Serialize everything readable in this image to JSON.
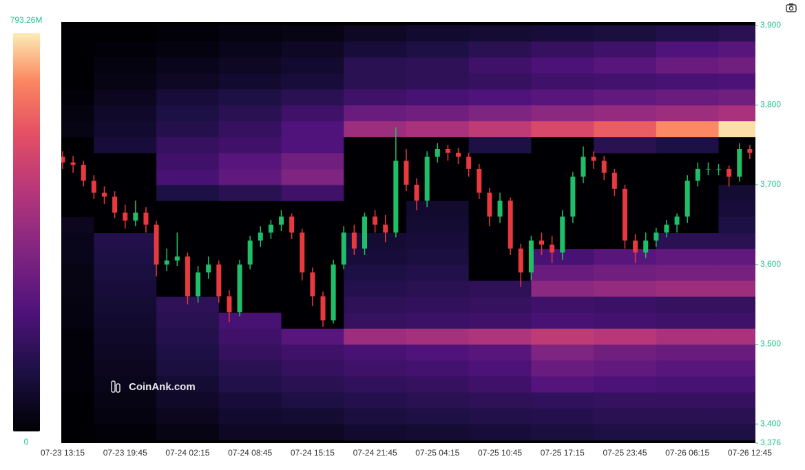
{
  "chart_data": {
    "type": "heatmap",
    "watermark": "CoinAnk.com",
    "categories": [
      "07-23 13:15",
      null,
      null,
      null,
      null,
      null,
      "07-23 19:45",
      null,
      null,
      null,
      null,
      null,
      "07-24 02:15",
      null,
      null,
      null,
      null,
      null,
      "07-24 08:45",
      null,
      null,
      null,
      null,
      null,
      "07-24 15:15",
      null,
      null,
      null,
      null,
      null,
      "07-24 21:45",
      null,
      null,
      null,
      null,
      null,
      "07-25 04:15",
      null,
      null,
      null,
      null,
      null,
      "07-25 10:45",
      null,
      null,
      null,
      null,
      null,
      "07-25 17:15",
      null,
      null,
      null,
      null,
      null,
      "07-25 23:45",
      null,
      null,
      null,
      null,
      null,
      "07-26 06:15",
      null,
      null,
      null,
      null,
      null,
      "07-26 12:45"
    ],
    "ylim": [
      3376,
      3904
    ],
    "yticks": [
      {
        "value": 3376,
        "label": "3,376"
      },
      {
        "value": 3400,
        "label": "3,400"
      },
      {
        "value": 3500,
        "label": "3,500"
      },
      {
        "value": 3600,
        "label": "3,600"
      },
      {
        "value": 3700,
        "label": "3,700"
      },
      {
        "value": 3800,
        "label": "3,800"
      },
      {
        "value": 3900,
        "label": "3,900"
      }
    ],
    "colorbar": {
      "zlim": [
        0,
        793.26
      ],
      "ticks": [
        0,
        {
          "value": 793.26,
          "label": "793.26M"
        }
      ]
    },
    "y_bins": [
      3380,
      3400,
      3420,
      3440,
      3460,
      3480,
      3500,
      3520,
      3540,
      3560,
      3580,
      3600,
      3620,
      3640,
      3660,
      3680,
      3700,
      3720,
      3740,
      3760,
      3780,
      3800,
      3820,
      3840,
      3860,
      3880,
      3900
    ],
    "z": [
      [
        0,
        10,
        30,
        60,
        60,
        80,
        90,
        100,
        110,
        120,
        120,
        120
      ],
      [
        0,
        20,
        50,
        80,
        90,
        110,
        120,
        130,
        140,
        150,
        150,
        150
      ],
      [
        0,
        30,
        70,
        100,
        120,
        140,
        150,
        160,
        170,
        180,
        180,
        180
      ],
      [
        10,
        40,
        90,
        130,
        150,
        170,
        180,
        200,
        250,
        230,
        220,
        220
      ],
      [
        10,
        50,
        110,
        150,
        180,
        200,
        210,
        230,
        300,
        280,
        260,
        260
      ],
      [
        10,
        60,
        120,
        180,
        200,
        220,
        240,
        260,
        350,
        320,
        300,
        300
      ],
      [
        10,
        70,
        140,
        200,
        260,
        420,
        440,
        460,
        500,
        480,
        450,
        450
      ],
      [
        20,
        80,
        150,
        220,
        0,
        180,
        190,
        200,
        220,
        210,
        200,
        200
      ],
      [
        20,
        90,
        160,
        0,
        0,
        160,
        170,
        180,
        200,
        190,
        180,
        180
      ],
      [
        30,
        100,
        0,
        0,
        0,
        140,
        150,
        160,
        380,
        400,
        420,
        420
      ],
      [
        30,
        110,
        0,
        0,
        0,
        120,
        130,
        0,
        300,
        320,
        330,
        330
      ],
      [
        40,
        120,
        0,
        0,
        0,
        100,
        110,
        0,
        220,
        260,
        280,
        280
      ],
      [
        40,
        130,
        0,
        0,
        0,
        90,
        100,
        0,
        0,
        0,
        150,
        150
      ],
      [
        50,
        0,
        0,
        0,
        0,
        0,
        90,
        0,
        0,
        0,
        0,
        120
      ],
      [
        0,
        0,
        0,
        0,
        0,
        0,
        80,
        0,
        0,
        0,
        0,
        100
      ],
      [
        0,
        0,
        120,
        150,
        200,
        0,
        0,
        0,
        0,
        0,
        0,
        90
      ],
      [
        0,
        0,
        220,
        280,
        350,
        0,
        0,
        0,
        0,
        0,
        0,
        0
      ],
      [
        0,
        0,
        200,
        260,
        320,
        0,
        0,
        0,
        0,
        0,
        0,
        0
      ],
      [
        0,
        100,
        180,
        200,
        240,
        0,
        0,
        120,
        0,
        150,
        120,
        0
      ],
      [
        30,
        80,
        140,
        180,
        240,
        420,
        450,
        500,
        560,
        620,
        700,
        780
      ],
      [
        20,
        70,
        120,
        150,
        200,
        300,
        320,
        350,
        380,
        400,
        420,
        450
      ],
      [
        10,
        50,
        100,
        120,
        150,
        200,
        220,
        240,
        260,
        280,
        300,
        320
      ],
      [
        0,
        30,
        60,
        80,
        100,
        150,
        160,
        180,
        200,
        210,
        220,
        230
      ],
      [
        0,
        20,
        40,
        60,
        80,
        150,
        160,
        200,
        230,
        260,
        300,
        320
      ],
      [
        0,
        10,
        20,
        40,
        60,
        100,
        120,
        150,
        180,
        200,
        240,
        260
      ],
      [
        0,
        0,
        10,
        20,
        30,
        60,
        80,
        90,
        100,
        110,
        130,
        150
      ]
    ],
    "candles": {
      "up_color": "#1fbf6a",
      "down_color": "#e8393f",
      "open": [
        3735,
        3728,
        3725,
        3705,
        3690,
        3685,
        3665,
        3655,
        3665,
        3650,
        3600,
        3605,
        3610,
        3560,
        3590,
        3600,
        3560,
        3540,
        3600,
        3630,
        3640,
        3650,
        3660,
        3640,
        3590,
        3560,
        3530,
        3600,
        3640,
        3620,
        3660,
        3650,
        3640,
        3730,
        3700,
        3680,
        3735,
        3745,
        3740,
        3735,
        3720,
        3690,
        3660,
        3680,
        3620,
        3590,
        3630,
        3625,
        3615,
        3660,
        3710,
        3735,
        3730,
        3715,
        3695,
        3630,
        3615,
        3630,
        3640,
        3650,
        3660,
        3705,
        3720,
        3720,
        3720,
        3710,
        3745
      ],
      "high": [
        3742,
        3736,
        3730,
        3712,
        3698,
        3692,
        3675,
        3680,
        3672,
        3655,
        3620,
        3640,
        3615,
        3598,
        3610,
        3605,
        3568,
        3606,
        3636,
        3648,
        3656,
        3668,
        3664,
        3645,
        3596,
        3566,
        3606,
        3648,
        3650,
        3665,
        3668,
        3662,
        3772,
        3745,
        3708,
        3742,
        3752,
        3750,
        3746,
        3740,
        3726,
        3696,
        3690,
        3684,
        3626,
        3636,
        3640,
        3636,
        3668,
        3716,
        3748,
        3742,
        3736,
        3720,
        3700,
        3638,
        3640,
        3646,
        3656,
        3664,
        3712,
        3728,
        3728,
        3726,
        3724,
        3752,
        3750
      ],
      "low": [
        3720,
        3715,
        3698,
        3682,
        3676,
        3658,
        3645,
        3648,
        3640,
        3585,
        3592,
        3598,
        3550,
        3552,
        3582,
        3552,
        3528,
        3535,
        3594,
        3622,
        3632,
        3642,
        3632,
        3580,
        3548,
        3522,
        3526,
        3594,
        3612,
        3612,
        3640,
        3628,
        3634,
        3692,
        3668,
        3672,
        3728,
        3730,
        3726,
        3710,
        3682,
        3648,
        3652,
        3612,
        3572,
        3580,
        3612,
        3602,
        3606,
        3652,
        3702,
        3720,
        3706,
        3686,
        3620,
        3602,
        3608,
        3622,
        3634,
        3640,
        3652,
        3698,
        3712,
        3712,
        3698,
        3704,
        3732
      ],
      "close": [
        3728,
        3725,
        3705,
        3690,
        3685,
        3665,
        3655,
        3665,
        3650,
        3600,
        3605,
        3610,
        3560,
        3590,
        3600,
        3560,
        3540,
        3600,
        3630,
        3640,
        3650,
        3660,
        3640,
        3590,
        3560,
        3530,
        3600,
        3640,
        3620,
        3660,
        3650,
        3640,
        3730,
        3700,
        3680,
        3735,
        3745,
        3740,
        3735,
        3720,
        3690,
        3660,
        3680,
        3620,
        3590,
        3630,
        3625,
        3615,
        3660,
        3710,
        3735,
        3730,
        3715,
        3695,
        3630,
        3615,
        3630,
        3640,
        3650,
        3660,
        3705,
        3720,
        3720,
        3720,
        3710,
        3745,
        3740
      ]
    }
  }
}
